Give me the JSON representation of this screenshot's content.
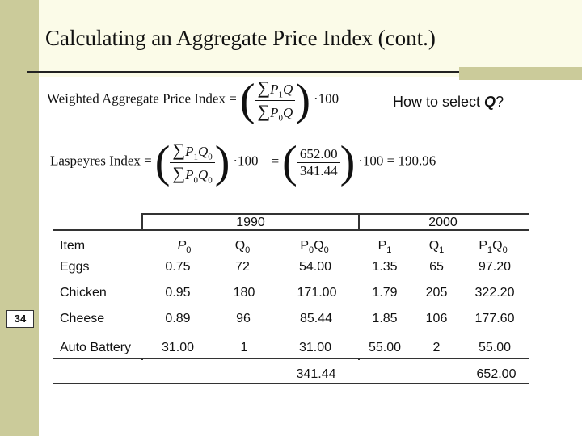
{
  "slide": {
    "title": "Calculating an Aggregate Price Index (cont.)",
    "number": "34"
  },
  "formulas": {
    "weighted_label": "Weighted Aggregate Price Index =",
    "weighted_times": "·100",
    "laspeyres_label": "Laspeyres Index =",
    "laspeyres_times": "·100",
    "laspeyres_equals": "=",
    "laspeyres_num_value": "652.00",
    "laspeyres_den_value": "341.44",
    "laspeyres_result": "·100 = 190.96"
  },
  "question": {
    "prefix": "How to select ",
    "var": "Q",
    "suffix": "?"
  },
  "table": {
    "year_1990": "1990",
    "year_2000": "2000",
    "item_header": "Item",
    "rows": [
      {
        "item": "Eggs",
        "p0": "0.75",
        "q0": "72",
        "p0q0": "54.00",
        "p1": "1.35",
        "q1": "65",
        "p1q0": "97.20"
      },
      {
        "item": "Chicken",
        "p0": "0.95",
        "q0": "180",
        "p0q0": "171.00",
        "p1": "1.79",
        "q1": "205",
        "p1q0": "322.20"
      },
      {
        "item": "Cheese",
        "p0": "0.89",
        "q0": "96",
        "p0q0": "85.44",
        "p1": "1.85",
        "q1": "106",
        "p1q0": "177.60"
      },
      {
        "item": "Auto Battery",
        "p0": "31.00",
        "q0": "1",
        "p0q0": "31.00",
        "p1": "55.00",
        "q1": "2",
        "p1q0": "55.00"
      }
    ],
    "total_p0q0": "341.44",
    "total_p1q0": "652.00"
  }
}
